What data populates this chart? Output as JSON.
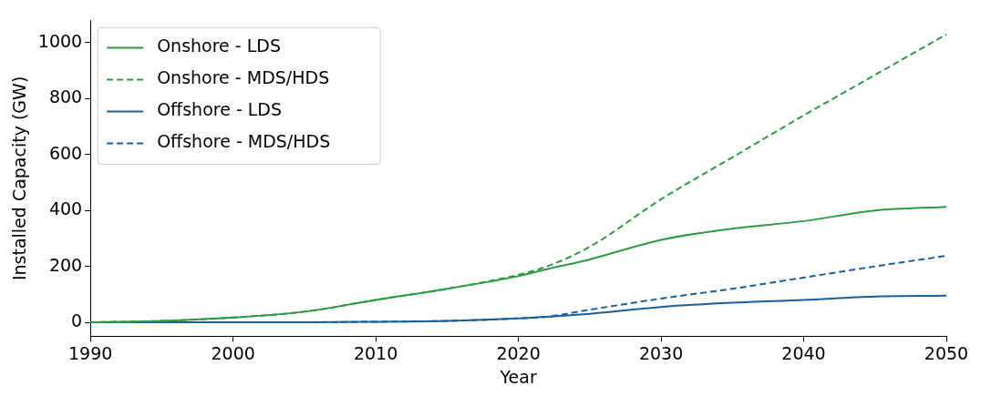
{
  "chart_data": {
    "type": "line",
    "xlabel": "Year",
    "ylabel": "Installed Capacity (GW)",
    "x": [
      1990,
      1995,
      2000,
      2005,
      2010,
      2015,
      2020,
      2022,
      2025,
      2030,
      2035,
      2040,
      2045,
      2050
    ],
    "xlim": [
      1990,
      2050
    ],
    "xticks": [
      1990,
      2000,
      2010,
      2020,
      2030,
      2040,
      2050
    ],
    "ylim": [
      -50,
      1080
    ],
    "yticks": [
      0,
      200,
      400,
      600,
      800,
      1000
    ],
    "grid": false,
    "legend": "top left",
    "marker": "none",
    "series": [
      {
        "name": "Onshore - LDS",
        "color": "#2e9a45",
        "line_style": "solid",
        "values": [
          0,
          5,
          17,
          38,
          80,
          120,
          165,
          190,
          225,
          295,
          335,
          362,
          400,
          413
        ]
      },
      {
        "name": "Onshore - MDS/HDS",
        "color": "#2e9a45",
        "line_style": "dashed",
        "values": [
          0,
          5,
          17,
          38,
          80,
          120,
          170,
          200,
          270,
          440,
          590,
          740,
          885,
          1030
        ]
      },
      {
        "name": "Offshore - LDS",
        "color": "#1a5e9a",
        "line_style": "solid",
        "values": [
          0,
          0,
          0,
          0,
          2,
          5,
          14,
          20,
          30,
          55,
          70,
          80,
          92,
          95
        ]
      },
      {
        "name": "Offshore - MDS/HDS",
        "color": "#1a5e9a",
        "line_style": "dashed",
        "values": [
          0,
          0,
          0,
          0,
          2,
          5,
          14,
          20,
          45,
          85,
          120,
          160,
          200,
          238
        ]
      }
    ]
  }
}
